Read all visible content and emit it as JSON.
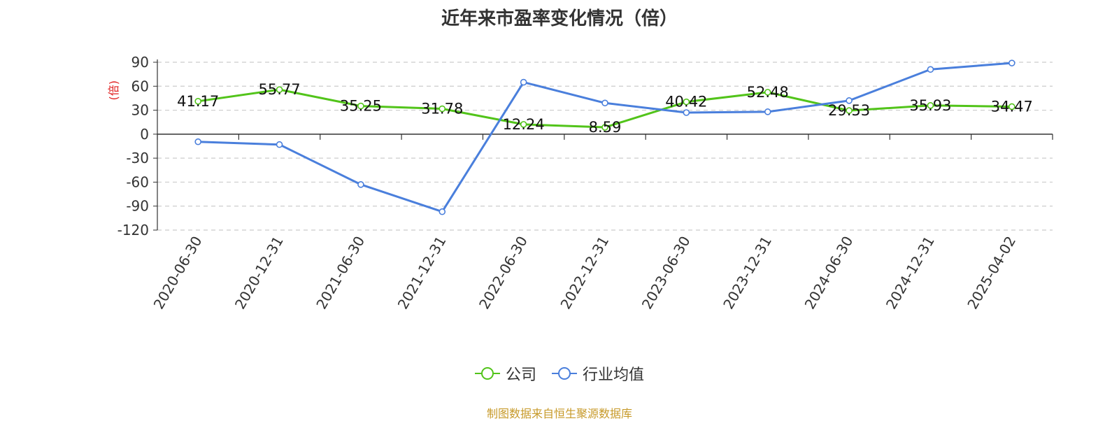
{
  "title": "近年来市盈率变化情况（倍）",
  "source": "制图数据来自恒生聚源数据库",
  "chart_data": {
    "type": "line",
    "title": "近年来市盈率变化情况（倍）",
    "ylabel": "(倍)",
    "xlabel": "",
    "categories": [
      "2020-06-30",
      "2020-12-31",
      "2021-06-30",
      "2021-12-31",
      "2022-06-30",
      "2022-12-31",
      "2023-06-30",
      "2023-12-31",
      "2024-06-30",
      "2024-12-31",
      "2025-04-02"
    ],
    "ylim": [
      -120,
      90
    ],
    "yticks": [
      90,
      60,
      30,
      0,
      -30,
      -60,
      -90,
      -120
    ],
    "grid": true,
    "legend_position": "bottom",
    "series": [
      {
        "name": "公司",
        "color": "#52c41a",
        "values": [
          41.17,
          55.77,
          35.25,
          31.78,
          12.24,
          8.59,
          40.42,
          52.48,
          29.53,
          35.93,
          34.47
        ],
        "labels": [
          "41.17",
          "55.77",
          "35.25",
          "31.78",
          "12.24",
          "8.59",
          "40.42",
          "52.48",
          "29.53",
          "35.93",
          "34.47"
        ]
      },
      {
        "name": "行业均值",
        "color": "#4a7fdc",
        "values": [
          -9.5,
          -13,
          -63,
          -97,
          65,
          39,
          27,
          28,
          42,
          81,
          89
        ]
      }
    ]
  }
}
